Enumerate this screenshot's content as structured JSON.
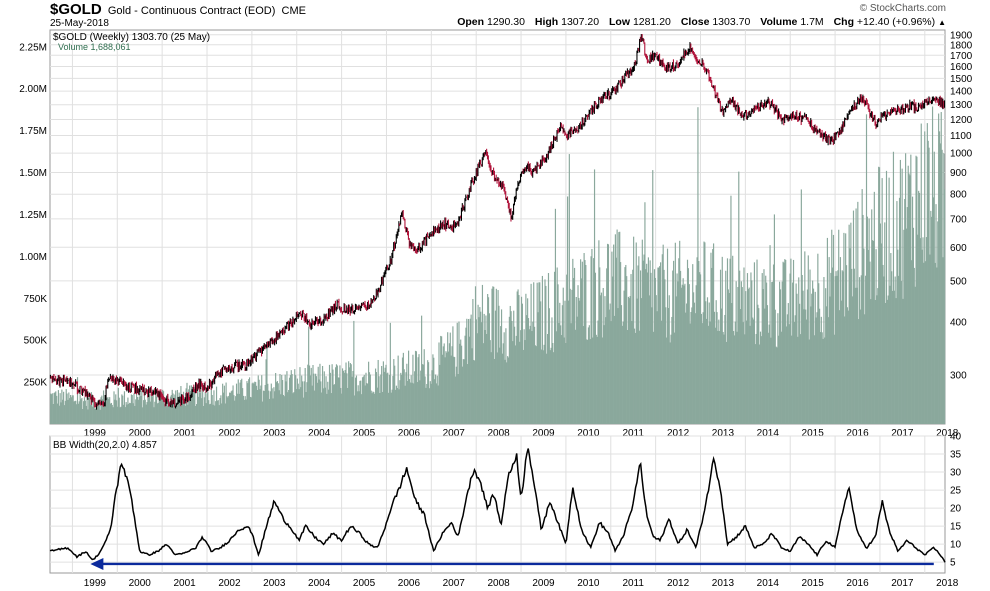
{
  "header": {
    "symbol": "$GOLD",
    "description": "Gold - Continuous Contract (EOD)",
    "exchange": "CME",
    "date": "25-May-2018",
    "brand": "© StockCharts.com",
    "quote": [
      {
        "label": "Open",
        "value": "1290.30"
      },
      {
        "label": "High",
        "value": "1307.20"
      },
      {
        "label": "Low",
        "value": "1281.20"
      },
      {
        "label": "Close",
        "value": "1303.70"
      },
      {
        "label": "Volume",
        "value": "1.7M"
      },
      {
        "label": "Chg",
        "value": "+12.40 (+0.96%)"
      }
    ],
    "chg_icon": "triangle-up-icon"
  },
  "chart_data": [
    {
      "type": "line",
      "panel": "price",
      "legend_price": "$GOLD (Weekly) 1303.70 (25 May)",
      "legend_volume": "Volume 1,688,061",
      "y_scale": "log",
      "ylim": [
        230,
        1950
      ],
      "yticks": [
        300,
        400,
        500,
        600,
        700,
        800,
        900,
        1000,
        1100,
        1200,
        1300,
        1400,
        1500,
        1600,
        1700,
        1800,
        1900
      ],
      "volume_ticks": [
        "250K",
        "500K",
        "750K",
        "1.00M",
        "1.25M",
        "1.50M",
        "1.75M",
        "2.00M",
        "2.25M"
      ],
      "volume_tick_values": [
        250000,
        500000,
        750000,
        1000000,
        1250000,
        1500000,
        1750000,
        2000000,
        2250000
      ],
      "volume_max": 2350000,
      "xlim": [
        1998.5,
        2018.45
      ],
      "xticks": [
        "1999",
        "2000",
        "2001",
        "2002",
        "2003",
        "2004",
        "2005",
        "2006",
        "2007",
        "2008",
        "2009",
        "2010",
        "2011",
        "2012",
        "2013",
        "2014",
        "2015",
        "2016",
        "2017",
        "2018"
      ],
      "colors": {
        "price_up": "#000000",
        "price_down": "#b0133a",
        "volume": "#8aa89c",
        "grid": "#e0e0e0"
      },
      "series": [
        {
          "name": "$GOLD",
          "x": [
            1998.5,
            1998.8,
            1999.0,
            1999.3,
            1999.55,
            1999.72,
            1999.8,
            1999.9,
            2000.05,
            2000.3,
            2000.6,
            2000.9,
            2001.0,
            2001.3,
            2001.6,
            2001.8,
            2002.0,
            2002.3,
            2002.6,
            2002.9,
            2003.1,
            2003.3,
            2003.6,
            2003.9,
            2004.1,
            2004.3,
            2004.6,
            2004.9,
            2005.1,
            2005.4,
            2005.7,
            2005.9,
            2006.1,
            2006.35,
            2006.5,
            2006.7,
            2006.9,
            2007.1,
            2007.3,
            2007.55,
            2007.8,
            2008.0,
            2008.2,
            2008.4,
            2008.6,
            2008.8,
            2008.9,
            2009.1,
            2009.3,
            2009.6,
            2009.9,
            2010.0,
            2010.3,
            2010.55,
            2010.9,
            2011.0,
            2011.3,
            2011.55,
            2011.68,
            2011.8,
            2012.0,
            2012.2,
            2012.5,
            2012.75,
            2012.9,
            2013.1,
            2013.3,
            2013.5,
            2013.7,
            2013.9,
            2014.2,
            2014.5,
            2014.8,
            2014.95,
            2015.1,
            2015.4,
            2015.6,
            2015.9,
            2016.05,
            2016.3,
            2016.6,
            2016.9,
            2017.1,
            2017.4,
            2017.7,
            2017.9,
            2018.1,
            2018.3,
            2018.45
          ],
          "values": [
            295,
            290,
            287,
            270,
            255,
            262,
            300,
            290,
            288,
            282,
            275,
            270,
            264,
            258,
            268,
            285,
            280,
            305,
            315,
            320,
            335,
            350,
            375,
            400,
            420,
            395,
            405,
            440,
            425,
            430,
            445,
            500,
            560,
            720,
            610,
            590,
            630,
            655,
            680,
            670,
            790,
            900,
            1000,
            880,
            830,
            700,
            820,
            930,
            900,
            1000,
            1170,
            1100,
            1150,
            1250,
            1380,
            1370,
            1500,
            1620,
            1900,
            1650,
            1700,
            1580,
            1620,
            1780,
            1680,
            1600,
            1400,
            1250,
            1350,
            1220,
            1260,
            1320,
            1210,
            1200,
            1230,
            1190,
            1120,
            1070,
            1100,
            1240,
            1350,
            1170,
            1230,
            1260,
            1290,
            1280,
            1340,
            1330,
            1300
          ]
        },
        {
          "name": "Volume",
          "x": [
            1998.5,
            1999.5,
            2000.0,
            2001.0,
            2002.0,
            2003.0,
            2004.0,
            2005.0,
            2006.0,
            2007.0,
            2007.6,
            2008.0,
            2009.0,
            2010.0,
            2011.0,
            2012.0,
            2013.0,
            2014.0,
            2015.0,
            2016.0,
            2016.8,
            2017.5,
            2018.0,
            2018.45
          ],
          "values": [
            180000,
            150000,
            160000,
            180000,
            190000,
            230000,
            280000,
            300000,
            330000,
            380000,
            500000,
            700000,
            650000,
            800000,
            950000,
            850000,
            900000,
            800000,
            800000,
            950000,
            1200000,
            1350000,
            1550000,
            1500000
          ]
        }
      ]
    },
    {
      "type": "line",
      "panel": "indicator",
      "legend": "BB Width(20,2.0) 4.857",
      "ylim": [
        2,
        40
      ],
      "yticks": [
        5,
        10,
        15,
        20,
        25,
        30,
        35,
        40
      ],
      "colors": {
        "line": "#000000",
        "arrow": "#0b2a9c"
      },
      "annotation": {
        "type": "arrow",
        "direction": "left",
        "y": 4.5,
        "x_from": 2018.2,
        "x_to": 1999.4
      },
      "series": [
        {
          "name": "BB Width(20,2.0)",
          "x": [
            1998.5,
            1998.7,
            1998.9,
            1999.1,
            1999.3,
            1999.45,
            1999.6,
            1999.75,
            1999.85,
            1999.95,
            2000.1,
            2000.3,
            2000.5,
            2000.7,
            2000.9,
            2001.1,
            2001.3,
            2001.5,
            2001.75,
            2001.9,
            2002.1,
            2002.3,
            2002.5,
            2002.7,
            2002.9,
            2003.0,
            2003.15,
            2003.35,
            2003.5,
            2003.7,
            2003.9,
            2004.05,
            2004.2,
            2004.4,
            2004.6,
            2004.8,
            2005.0,
            2005.2,
            2005.4,
            2005.6,
            2005.8,
            2005.95,
            2006.1,
            2006.3,
            2006.45,
            2006.65,
            2006.85,
            2007.05,
            2007.25,
            2007.45,
            2007.6,
            2007.8,
            2007.95,
            2008.1,
            2008.25,
            2008.4,
            2008.55,
            2008.7,
            2008.9,
            2009.0,
            2009.15,
            2009.3,
            2009.45,
            2009.65,
            2009.85,
            2010.0,
            2010.15,
            2010.35,
            2010.55,
            2010.75,
            2010.95,
            2011.1,
            2011.3,
            2011.5,
            2011.65,
            2011.8,
            2011.95,
            2012.1,
            2012.3,
            2012.5,
            2012.7,
            2012.9,
            2013.1,
            2013.3,
            2013.45,
            2013.6,
            2013.8,
            2014.0,
            2014.2,
            2014.4,
            2014.6,
            2014.8,
            2015.0,
            2015.2,
            2015.4,
            2015.6,
            2015.8,
            2016.0,
            2016.15,
            2016.3,
            2016.5,
            2016.7,
            2016.9,
            2017.05,
            2017.2,
            2017.4,
            2017.6,
            2017.8,
            2018.0,
            2018.2,
            2018.35,
            2018.45
          ],
          "values": [
            8,
            8.5,
            9,
            6.5,
            8,
            5.5,
            7.5,
            11,
            14,
            23,
            33,
            24,
            8,
            7,
            8,
            10,
            7,
            7.5,
            9,
            12,
            8,
            9,
            11,
            14,
            15,
            13,
            7,
            16,
            22,
            17,
            14,
            11,
            15,
            12,
            10,
            13,
            11,
            15,
            13,
            10,
            9,
            14,
            20,
            26,
            31,
            22,
            18,
            8,
            13,
            16,
            12,
            24,
            31,
            27,
            20,
            24,
            15,
            28,
            35,
            22,
            38,
            26,
            14,
            22,
            15,
            10,
            26,
            14,
            9,
            16,
            13,
            8,
            13,
            21,
            33,
            18,
            12,
            11,
            17,
            10,
            14,
            9,
            20,
            34,
            25,
            10,
            12,
            15,
            9,
            10,
            13,
            9,
            8,
            12,
            10,
            7,
            11,
            9,
            18,
            26,
            13,
            9,
            12,
            22,
            14,
            8,
            11,
            9,
            7,
            9,
            7,
            5
          ]
        }
      ]
    }
  ]
}
